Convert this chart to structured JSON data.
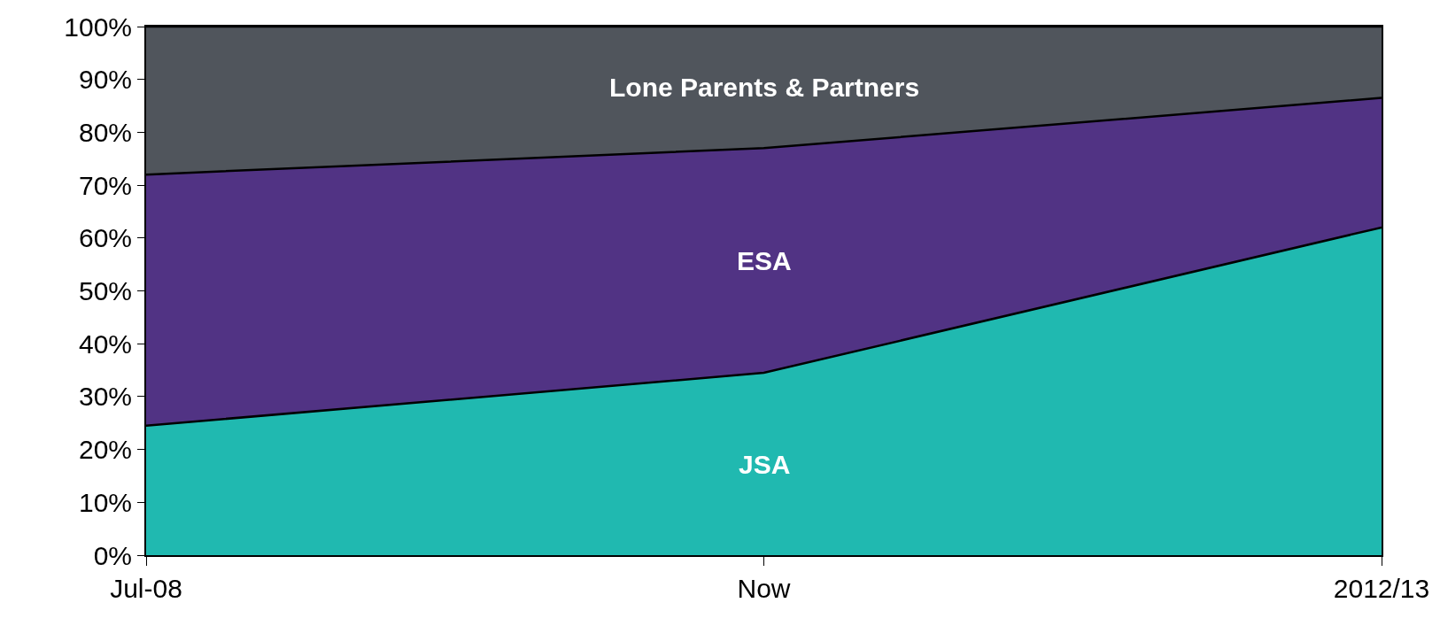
{
  "chart_data": {
    "type": "area",
    "stacked": true,
    "categories": [
      "Jul-08",
      "Now",
      "2012/13"
    ],
    "series": [
      {
        "name": "JSA",
        "color": "#20b9b0",
        "values": [
          24.5,
          34.5,
          62
        ]
      },
      {
        "name": "ESA",
        "color": "#513384",
        "values": [
          47.5,
          42.5,
          24.5
        ]
      },
      {
        "name": "Lone Parents & Partners",
        "color": "#50555c",
        "values": [
          28,
          23,
          13.5
        ]
      }
    ],
    "ylim": [
      0,
      100
    ],
    "yticks": [
      {
        "value": 0,
        "label": "0%"
      },
      {
        "value": 10,
        "label": "10%"
      },
      {
        "value": 20,
        "label": "20%"
      },
      {
        "value": 30,
        "label": "30%"
      },
      {
        "value": 40,
        "label": "40%"
      },
      {
        "value": 50,
        "label": "50%"
      },
      {
        "value": 60,
        "label": "60%"
      },
      {
        "value": 70,
        "label": "70%"
      },
      {
        "value": 80,
        "label": "80%"
      },
      {
        "value": 90,
        "label": "90%"
      },
      {
        "value": 100,
        "label": "100%"
      }
    ],
    "legend": false
  }
}
